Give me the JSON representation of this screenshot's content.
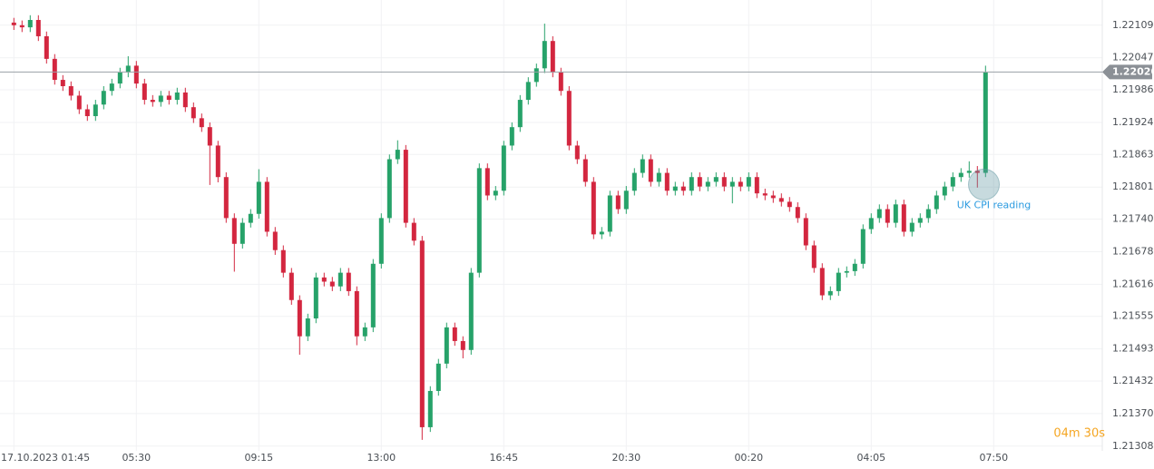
{
  "chart_data": {
    "type": "candlestick",
    "xlim": [
      -1.7,
      133.3
    ],
    "xticks": [
      {
        "value": 0,
        "label": "17.10.2023  01:45"
      },
      {
        "value": 15,
        "label": "05:30"
      },
      {
        "value": 30,
        "label": "09:15"
      },
      {
        "value": 45,
        "label": "13:00"
      },
      {
        "value": 60,
        "label": "16:45"
      },
      {
        "value": 75,
        "label": "20:30"
      },
      {
        "value": 90,
        "label": "00:20"
      },
      {
        "value": 105,
        "label": "04:05"
      },
      {
        "value": 120,
        "label": "07:50"
      }
    ],
    "ylim": [
      1.21299,
      1.22157
    ],
    "yticks": [
      1.22109,
      1.22047,
      1.21986,
      1.21924,
      1.21863,
      1.21801,
      {
        "value": 1.2174,
        "label": "1.21740"
      },
      1.21678,
      1.21616,
      1.21555,
      1.21493,
      1.21432,
      {
        "value": 1.2137,
        "label": "1.21370"
      },
      1.21308
    ],
    "grid": true,
    "up_color": "#26a269",
    "down_color": "#d3263f",
    "open": [
      1.22114,
      1.22109,
      1.22105,
      1.22119,
      1.22088,
      1.22045,
      1.22005,
      1.21993,
      1.21975,
      1.21949,
      1.21936,
      1.21958,
      1.21984,
      1.21998,
      1.22019,
      1.22032,
      1.21998,
      1.21967,
      1.21963,
      1.21975,
      1.21967,
      1.21981,
      1.21953,
      1.21932,
      1.21915,
      1.2188,
      1.2182,
      1.21742,
      1.21693,
      1.21733,
      1.2175,
      1.21811,
      1.21716,
      1.21681,
      1.21638,
      1.21586,
      1.21517,
      1.21551,
      1.21629,
      1.21621,
      1.21612,
      1.21638,
      1.21603,
      1.21517,
      1.21534,
      1.21655,
      1.21742,
      1.21854,
      1.21872,
      1.21733,
      1.21699,
      1.21344,
      1.21413,
      1.21465,
      1.21534,
      1.21508,
      1.21491,
      1.21638,
      1.21837,
      1.21785,
      1.21794,
      1.2188,
      1.21915,
      1.21967,
      1.22001,
      1.22027,
      1.22079,
      1.22019,
      1.21984,
      1.2188,
      1.21854,
      1.21811,
      1.21711,
      1.21716,
      1.21785,
      1.21759,
      1.21794,
      1.21828,
      1.21854,
      1.21811,
      1.21828,
      1.21794,
      1.21802,
      1.21794,
      1.2182,
      1.21802,
      1.21811,
      1.2182,
      1.21802,
      1.21811,
      1.21802,
      1.2182,
      1.21789,
      1.21785,
      1.2178,
      1.21773,
      1.21763,
      1.21742,
      1.2169,
      1.21647,
      1.21595,
      1.21603,
      1.21638,
      1.21641,
      1.21655,
      1.21721,
      1.21742,
      1.21759,
      1.21733,
      1.21768,
      1.21716,
      1.21733,
      1.21742,
      1.21759,
      1.21785,
      1.21802,
      1.2182,
      1.21828,
      1.21832,
      1.21828
    ],
    "high": [
      1.22123,
      1.22118,
      1.22128,
      1.22128,
      1.22097,
      1.22054,
      1.22014,
      1.22002,
      1.21984,
      1.21958,
      1.21967,
      1.21993,
      1.22007,
      1.22028,
      1.2205,
      1.22041,
      1.22007,
      1.21976,
      1.21984,
      1.21984,
      1.2199,
      1.2199,
      1.21962,
      1.21941,
      1.21924,
      1.21889,
      1.21829,
      1.21751,
      1.21742,
      1.21759,
      1.21835,
      1.2182,
      1.21725,
      1.2169,
      1.21647,
      1.21595,
      1.2156,
      1.21638,
      1.21638,
      1.2163,
      1.21647,
      1.21647,
      1.21612,
      1.21543,
      1.21664,
      1.21751,
      1.21863,
      1.2189,
      1.21881,
      1.21742,
      1.21708,
      1.21422,
      1.21474,
      1.21543,
      1.21543,
      1.21517,
      1.21647,
      1.21846,
      1.21846,
      1.21803,
      1.21889,
      1.21924,
      1.21976,
      1.2201,
      1.22036,
      1.22112,
      1.22088,
      1.22028,
      1.21993,
      1.21889,
      1.21863,
      1.2182,
      1.21725,
      1.21794,
      1.21794,
      1.21803,
      1.21837,
      1.21863,
      1.21863,
      1.21837,
      1.21837,
      1.21811,
      1.21811,
      1.21829,
      1.21829,
      1.2182,
      1.21829,
      1.21829,
      1.2182,
      1.2182,
      1.21829,
      1.21829,
      1.21798,
      1.21794,
      1.21789,
      1.21782,
      1.21772,
      1.21751,
      1.21699,
      1.21656,
      1.21612,
      1.21647,
      1.2165,
      1.21664,
      1.2173,
      1.21751,
      1.21768,
      1.21768,
      1.21777,
      1.21777,
      1.21742,
      1.21751,
      1.21768,
      1.21794,
      1.21811,
      1.21829,
      1.21837,
      1.2185,
      1.21841,
      1.22032
    ],
    "low": [
      1.221,
      1.22096,
      1.22096,
      1.22079,
      1.22036,
      1.21996,
      1.21984,
      1.21966,
      1.2194,
      1.21927,
      1.21927,
      1.21949,
      1.21975,
      1.21989,
      1.2201,
      1.21989,
      1.21958,
      1.21954,
      1.21954,
      1.21958,
      1.21958,
      1.21944,
      1.21923,
      1.21906,
      1.21805,
      1.2181,
      1.21733,
      1.2164,
      1.21684,
      1.21724,
      1.21741,
      1.21707,
      1.21672,
      1.21629,
      1.21577,
      1.21482,
      1.21508,
      1.21542,
      1.21612,
      1.21603,
      1.21603,
      1.21594,
      1.215,
      1.21508,
      1.21525,
      1.21646,
      1.21733,
      1.21845,
      1.21724,
      1.2169,
      1.2132,
      1.21335,
      1.21404,
      1.21456,
      1.21499,
      1.21475,
      1.21482,
      1.21629,
      1.21776,
      1.21776,
      1.21785,
      1.21871,
      1.21906,
      1.21958,
      1.21992,
      1.22018,
      1.2201,
      1.21975,
      1.21871,
      1.21845,
      1.21802,
      1.21702,
      1.21702,
      1.21707,
      1.2175,
      1.2175,
      1.21785,
      1.21819,
      1.21802,
      1.21802,
      1.21785,
      1.21785,
      1.21785,
      1.21785,
      1.21793,
      1.21793,
      1.21802,
      1.21793,
      1.2177,
      1.21793,
      1.21793,
      1.2178,
      1.21776,
      1.21771,
      1.21764,
      1.21754,
      1.21733,
      1.21681,
      1.21638,
      1.21586,
      1.21586,
      1.21594,
      1.21629,
      1.21632,
      1.21646,
      1.21712,
      1.21733,
      1.21724,
      1.21724,
      1.21707,
      1.21707,
      1.21724,
      1.21733,
      1.2175,
      1.21776,
      1.21793,
      1.21811,
      1.21819,
      1.218,
      1.2182
    ],
    "close": [
      1.22109,
      1.22105,
      1.22119,
      1.22088,
      1.22045,
      1.22005,
      1.21993,
      1.21975,
      1.21949,
      1.21936,
      1.21958,
      1.21984,
      1.21998,
      1.22019,
      1.22032,
      1.21998,
      1.21967,
      1.21963,
      1.21975,
      1.21967,
      1.21981,
      1.21953,
      1.21932,
      1.21915,
      1.2188,
      1.2182,
      1.21742,
      1.21693,
      1.21733,
      1.2175,
      1.21811,
      1.21716,
      1.21681,
      1.21638,
      1.21586,
      1.21517,
      1.21551,
      1.21629,
      1.21621,
      1.21612,
      1.21638,
      1.21603,
      1.21517,
      1.21534,
      1.21655,
      1.21742,
      1.21854,
      1.21872,
      1.21733,
      1.21699,
      1.21344,
      1.21413,
      1.21465,
      1.21534,
      1.21508,
      1.21491,
      1.21638,
      1.21837,
      1.21785,
      1.21794,
      1.2188,
      1.21915,
      1.21967,
      1.22001,
      1.22027,
      1.22079,
      1.22019,
      1.21984,
      1.2188,
      1.21854,
      1.21811,
      1.21711,
      1.21716,
      1.21785,
      1.21759,
      1.21794,
      1.21828,
      1.21854,
      1.21811,
      1.21828,
      1.21794,
      1.21802,
      1.21794,
      1.2182,
      1.21802,
      1.21811,
      1.2182,
      1.21802,
      1.21811,
      1.21802,
      1.2182,
      1.21789,
      1.21785,
      1.2178,
      1.21773,
      1.21763,
      1.21742,
      1.2169,
      1.21647,
      1.21595,
      1.21603,
      1.21638,
      1.21641,
      1.21655,
      1.21721,
      1.21742,
      1.21759,
      1.21733,
      1.21768,
      1.21716,
      1.21733,
      1.21742,
      1.21759,
      1.21785,
      1.21802,
      1.2182,
      1.21828,
      1.21832,
      1.21828,
      1.22019
    ],
    "current_price": {
      "value": 1.2202,
      "label": "1.22020"
    },
    "annotation": {
      "text": "UK CPI reading",
      "x": 118.8,
      "y": 1.21806
    },
    "timer": "04m 30s"
  }
}
